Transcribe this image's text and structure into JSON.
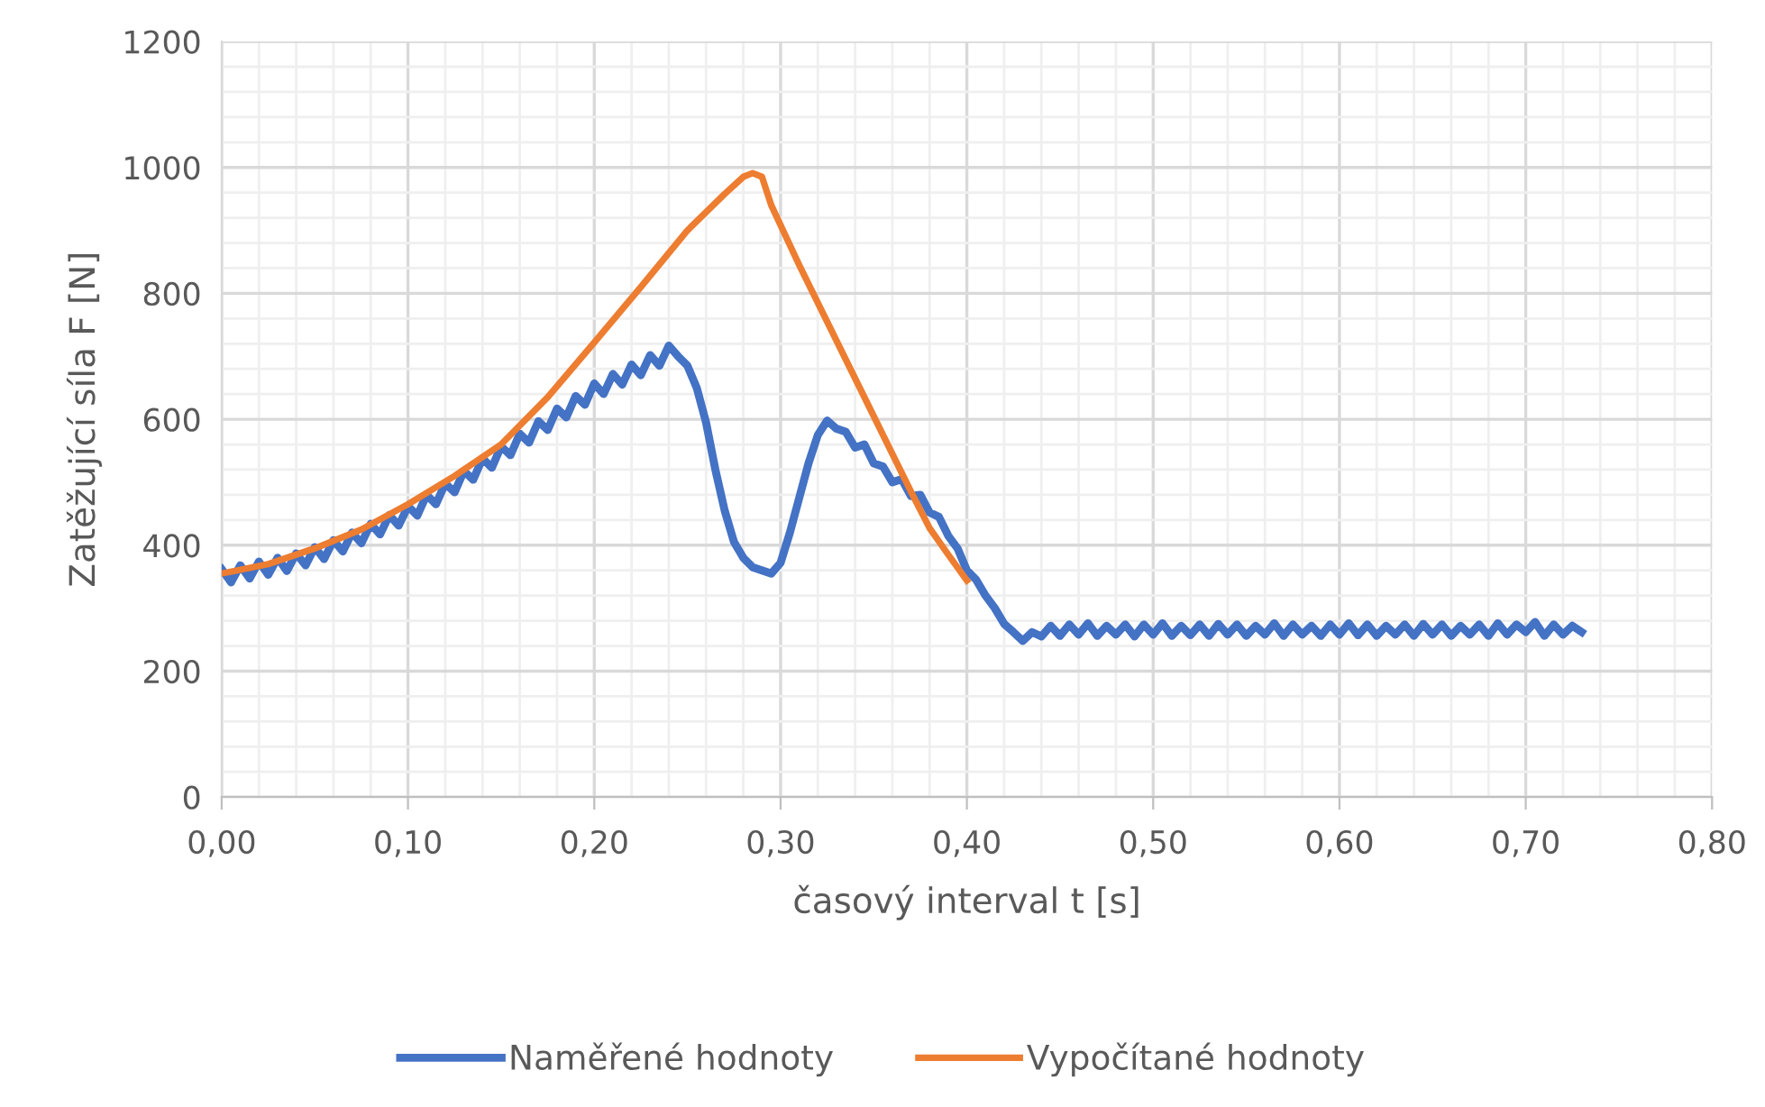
{
  "chart_data": {
    "type": "line",
    "xlabel": "časový interval t [s]",
    "ylabel": "Zatěžující síla F [N]",
    "xlim": [
      0,
      0.8
    ],
    "xticks": [
      {
        "value": 0,
        "label": "0,00"
      },
      {
        "value": 0.1,
        "label": "0,10"
      },
      {
        "value": 0.2,
        "label": "0,20"
      },
      {
        "value": 0.3,
        "label": "0,30"
      },
      {
        "value": 0.4,
        "label": "0,40"
      },
      {
        "value": 0.5,
        "label": "0,50"
      },
      {
        "value": 0.6,
        "label": "0,60"
      },
      {
        "value": 0.7,
        "label": "0,70"
      },
      {
        "value": 0.8,
        "label": "0,80"
      }
    ],
    "ylim": [
      0,
      1200
    ],
    "yticks": [
      0,
      200,
      400,
      600,
      800,
      1000,
      1200
    ],
    "grid": true,
    "legend": "bottom",
    "marker": "none",
    "line_style": "solid",
    "series": [
      {
        "name": "Naměřené hodnoty",
        "color": "#4472c4",
        "x": [
          0,
          0.005,
          0.01,
          0.015,
          0.02,
          0.025,
          0.03,
          0.035,
          0.04,
          0.045,
          0.05,
          0.055,
          0.06,
          0.065,
          0.07,
          0.075,
          0.08,
          0.085,
          0.09,
          0.095,
          0.1,
          0.105,
          0.11,
          0.115,
          0.12,
          0.125,
          0.13,
          0.135,
          0.14,
          0.145,
          0.15,
          0.155,
          0.16,
          0.165,
          0.17,
          0.175,
          0.18,
          0.185,
          0.19,
          0.195,
          0.2,
          0.205,
          0.21,
          0.215,
          0.22,
          0.225,
          0.23,
          0.235,
          0.24,
          0.245,
          0.25,
          0.255,
          0.26,
          0.265,
          0.27,
          0.275,
          0.28,
          0.285,
          0.29,
          0.295,
          0.3,
          0.305,
          0.31,
          0.315,
          0.32,
          0.325,
          0.33,
          0.335,
          0.34,
          0.345,
          0.35,
          0.355,
          0.36,
          0.365,
          0.37,
          0.375,
          0.38,
          0.385,
          0.39,
          0.395,
          0.4,
          0.405,
          0.41,
          0.415,
          0.42,
          0.425,
          0.43,
          0.435,
          0.44,
          0.445,
          0.45,
          0.455,
          0.46,
          0.465,
          0.47,
          0.475,
          0.48,
          0.485,
          0.49,
          0.495,
          0.5,
          0.505,
          0.51,
          0.515,
          0.52,
          0.525,
          0.53,
          0.535,
          0.54,
          0.545,
          0.55,
          0.555,
          0.56,
          0.565,
          0.57,
          0.575,
          0.58,
          0.585,
          0.59,
          0.595,
          0.6,
          0.605,
          0.61,
          0.615,
          0.62,
          0.625,
          0.63,
          0.635,
          0.64,
          0.645,
          0.65,
          0.655,
          0.66,
          0.665,
          0.67,
          0.675,
          0.68,
          0.685,
          0.69,
          0.695,
          0.7,
          0.705,
          0.71,
          0.715,
          0.72,
          0.725,
          0.73
        ],
        "values": [
          362,
          341,
          368,
          347,
          374,
          353,
          380,
          359,
          387,
          368,
          397,
          378,
          408,
          390,
          420,
          403,
          434,
          417,
          448,
          431,
          462,
          447,
          480,
          465,
          498,
          484,
          518,
          504,
          538,
          523,
          557,
          543,
          577,
          563,
          597,
          583,
          617,
          603,
          637,
          623,
          657,
          640,
          672,
          655,
          687,
          670,
          702,
          685,
          717,
          700,
          685,
          650,
          595,
          520,
          455,
          405,
          380,
          365,
          360,
          355,
          372,
          420,
          475,
          530,
          575,
          598,
          585,
          580,
          555,
          560,
          530,
          525,
          500,
          505,
          478,
          480,
          452,
          445,
          415,
          395,
          360,
          345,
          320,
          300,
          275,
          262,
          248,
          262,
          255,
          272,
          256,
          274,
          258,
          276,
          256,
          272,
          258,
          274,
          255,
          274,
          258,
          276,
          256,
          272,
          257,
          274,
          256,
          275,
          258,
          274,
          256,
          272,
          258,
          276,
          256,
          274,
          258,
          272,
          256,
          274,
          258,
          276,
          257,
          274,
          256,
          272,
          258,
          274,
          256,
          275,
          258,
          274,
          256,
          272,
          258,
          274,
          256,
          276,
          258,
          274,
          262,
          278,
          256,
          274,
          258,
          272,
          262
        ]
      },
      {
        "name": "Vypočítané hodnoty",
        "color": "#ed7d31",
        "x": [
          0,
          0.025,
          0.05,
          0.075,
          0.1,
          0.125,
          0.15,
          0.175,
          0.2,
          0.225,
          0.25,
          0.27,
          0.28,
          0.285,
          0.29,
          0.295,
          0.31,
          0.33,
          0.35,
          0.37,
          0.38,
          0.39,
          0.4
        ],
        "values": [
          355,
          370,
          395,
          425,
          465,
          510,
          560,
          635,
          722,
          810,
          900,
          958,
          985,
          991,
          985,
          940,
          845,
          725,
          605,
          485,
          427,
          385,
          344
        ]
      }
    ]
  }
}
